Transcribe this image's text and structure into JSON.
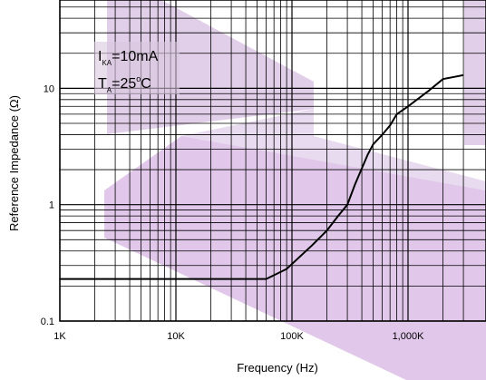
{
  "chart_data": {
    "type": "line",
    "title": "",
    "xlabel": "Frequency (Hz)",
    "ylabel": "Reference Impedance (Ω)",
    "x_scale": "log",
    "y_scale": "log",
    "xlim": [
      1000,
      3500000
    ],
    "ylim": [
      0.1,
      50
    ],
    "grid": true,
    "x_ticks": [
      1000,
      10000,
      100000,
      1000000
    ],
    "x_tick_labels": [
      "1K",
      "10K",
      "100K",
      "1,000K"
    ],
    "y_ticks": [
      0.1,
      1,
      10
    ],
    "y_tick_labels": [
      "0.1",
      "1",
      "10"
    ],
    "conditions": {
      "current": {
        "main": "I",
        "sub": "KA",
        "value": "=10mA"
      },
      "temperature": {
        "main": "T",
        "sub": "A",
        "value": "=25",
        "sup": "o",
        "unit": "C"
      }
    },
    "series": [
      {
        "x": [
          1000,
          3000,
          10000,
          30000,
          60000,
          90000,
          150000,
          200000,
          250000,
          300000,
          350000,
          450000,
          500000,
          600000,
          700000,
          800000,
          1000000,
          1500000,
          2000000,
          3000000
        ],
        "y": [
          0.23,
          0.23,
          0.23,
          0.23,
          0.23,
          0.28,
          0.45,
          0.6,
          0.8,
          1.0,
          1.5,
          2.7,
          3.3,
          4.0,
          4.8,
          6.0,
          7.0,
          9.5,
          12,
          13
        ]
      }
    ]
  },
  "colors": {
    "watermark": "#c89ad8",
    "line": "#000000",
    "grid": "#000000"
  }
}
